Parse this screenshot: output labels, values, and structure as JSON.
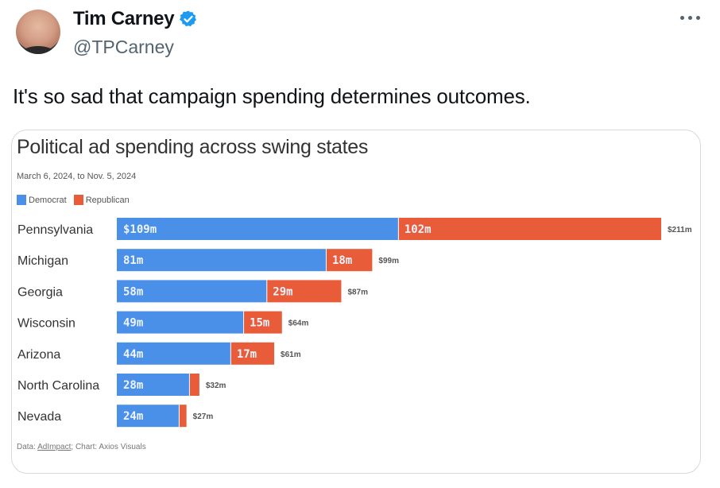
{
  "tweet": {
    "author_name": "Tim Carney",
    "handle": "@TPCarney",
    "verified_icon": "verified-badge-icon",
    "more_icon": "more-options-icon",
    "text": "It's so sad that campaign spending determines outcomes."
  },
  "colors": {
    "democrat": "#4a90e8",
    "republican": "#e85c3a",
    "verified": "#1d9bf0"
  },
  "source": {
    "prefix": "Data: ",
    "link": "AdImpact",
    "suffix": "; Chart: Axios Visuals"
  },
  "chart_data": {
    "type": "bar",
    "orientation": "horizontal",
    "stacked": true,
    "title": "Political ad spending across swing states",
    "subtitle": "March 6, 2024, to Nov. 5, 2024",
    "xlabel": "",
    "ylabel": "",
    "units": "millions USD",
    "legend": [
      "Democrat",
      "Republican"
    ],
    "legend_position": "top-left",
    "grid": false,
    "xlim": [
      0,
      211
    ],
    "categories": [
      "Pennsylvania",
      "Michigan",
      "Georgia",
      "Wisconsin",
      "Arizona",
      "North Carolina",
      "Nevada"
    ],
    "series": [
      {
        "name": "Democrat",
        "values": [
          109,
          81,
          58,
          49,
          44,
          28,
          24
        ],
        "labels": [
          "$109m",
          "81m",
          "58m",
          "49m",
          "44m",
          "28m",
          "24m"
        ]
      },
      {
        "name": "Republican",
        "values": [
          102,
          18,
          29,
          15,
          17,
          4,
          3
        ],
        "labels": [
          "102m",
          "18m",
          "29m",
          "15m",
          "17m",
          "",
          ""
        ]
      }
    ],
    "totals": [
      211,
      99,
      87,
      64,
      61,
      32,
      27
    ],
    "total_labels": [
      "$211m",
      "$99m",
      "$87m",
      "$64m",
      "$61m",
      "$32m",
      "$27m"
    ]
  }
}
